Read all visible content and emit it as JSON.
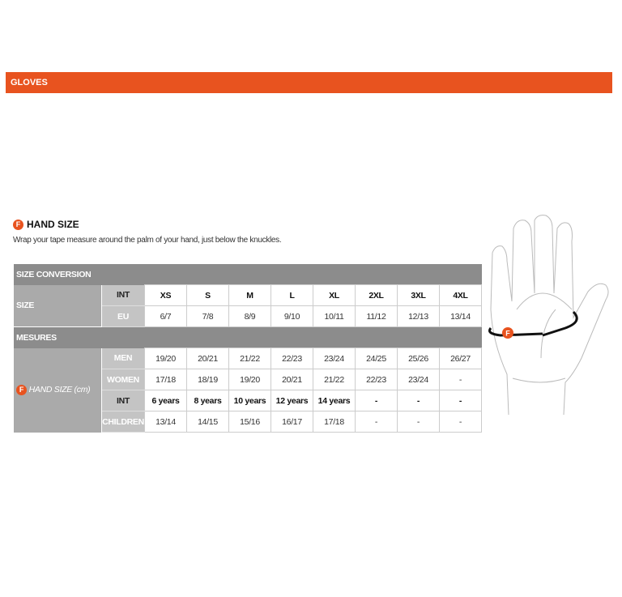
{
  "header": {
    "title": "GLOVES"
  },
  "section": {
    "badge": "F",
    "title": "HAND SIZE",
    "description": "Wrap your tape measure around the palm of your hand, just below the knuckles."
  },
  "table": {
    "size_conversion": "SIZE CONVERSION",
    "size_label": "SIZE",
    "int_label": "INT",
    "eu_label": "EU",
    "int": [
      "XS",
      "S",
      "M",
      "L",
      "XL",
      "2XL",
      "3XL",
      "4XL"
    ],
    "eu": [
      "6/7",
      "7/8",
      "8/9",
      "9/10",
      "10/11",
      "11/12",
      "12/13",
      "13/14"
    ],
    "mesures": "MESURES",
    "hand_badge": "F",
    "hand_label": "HAND SIZE (cm)",
    "men_label": "MEN",
    "women_label": "WOMEN",
    "kids_int_label": "INT",
    "children_label": "CHILDREN",
    "men": [
      "19/20",
      "20/21",
      "21/22",
      "22/23",
      "23/24",
      "24/25",
      "25/26",
      "26/27"
    ],
    "women": [
      "17/18",
      "18/19",
      "19/20",
      "20/21",
      "21/22",
      "22/23",
      "23/24",
      "-"
    ],
    "kids_int": [
      "6 years",
      "8 years",
      "10 years",
      "12 years",
      "14 years",
      "-",
      "-",
      "-"
    ],
    "children": [
      "13/14",
      "14/15",
      "15/16",
      "16/17",
      "17/18",
      "-",
      "-",
      "-"
    ]
  },
  "illustration": {
    "badge": "F",
    "icon": "hand-measure-illustration"
  },
  "colors": {
    "accent": "#e8531f",
    "section_gray": "#8c8c8c",
    "label_gray": "#aaaaaa"
  }
}
